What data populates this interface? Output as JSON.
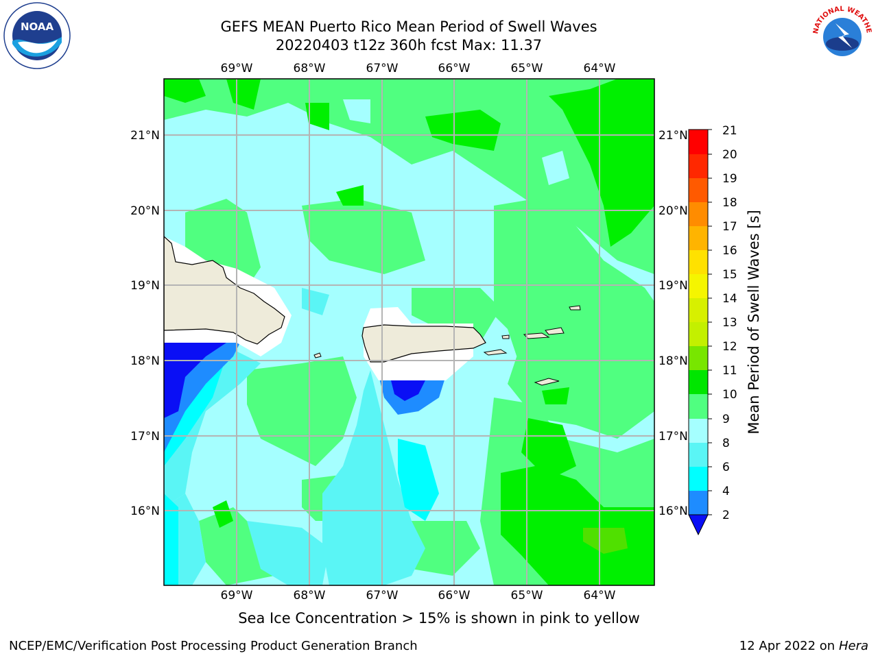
{
  "title_line1": "GEFS MEAN Puerto Rico Mean Period of Swell Waves",
  "title_line2": "20220403 t12z 360h fcst   Max: 11.37",
  "logos": {
    "left": "NOAA",
    "right": "NATIONAL WEATHER SERVICE"
  },
  "axes": {
    "lon_labels": [
      "69°W",
      "68°W",
      "67°W",
      "66°W",
      "65°W",
      "64°W"
    ],
    "lat_labels": [
      "21°N",
      "20°N",
      "19°N",
      "18°N",
      "17°N",
      "16°N"
    ]
  },
  "colorbar": {
    "label": "Mean Period of Swell Waves [s]",
    "ticks": [
      "21",
      "20",
      "19",
      "18",
      "17",
      "16",
      "15",
      "14",
      "13",
      "12",
      "11",
      "10",
      "9",
      "8",
      "6",
      "4",
      "2"
    ],
    "colors": {
      "lt2": "#0a0ff5",
      "2_4": "#1e8cff",
      "4_6": "#00ffff",
      "6_8": "#5af5f5",
      "8_9": "#a5ffff",
      "9_10": "#50ff80",
      "10_11": "#00f000",
      "11_12": "#50e000",
      "12_13": "#a0e600",
      "13_14": "#c8f000",
      "14_15": "#e6f500",
      "15_16": "#ffff00",
      "16_17": "#ffd200",
      "17_18": "#ffb400",
      "18_19": "#ff8c00",
      "19_20": "#ff5a00",
      "20_21": "#ff2800",
      "land": "#eeebda"
    }
  },
  "footer": {
    "note": "Sea Ice Concentration > 15% is shown in pink to yellow",
    "credit": "NCEP/EMC/Verification Post Processing Product Generation Branch",
    "date": "12 Apr 2022 on",
    "machine": "Hera"
  }
}
